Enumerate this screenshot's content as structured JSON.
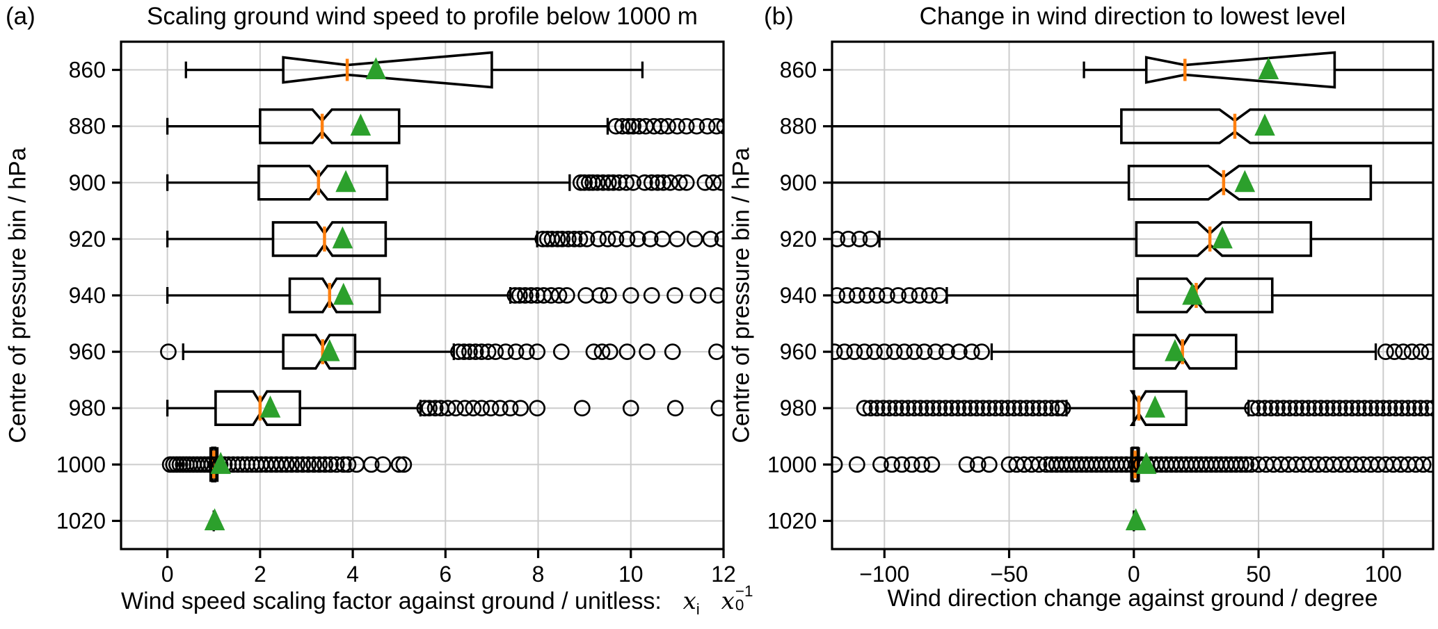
{
  "figure": {
    "background": "#ffffff"
  },
  "colors": {
    "box_line": "#000000",
    "median": "#ff7f0e",
    "mean_marker": "#2ca02c",
    "grid": "#cccccc",
    "text": "#000000"
  },
  "chart_data": [
    {
      "type": "box",
      "orientation": "horizontal",
      "tag": "(a)",
      "title": "Scaling ground wind speed to profile below 1000 m",
      "ylabel": "Centre of pressure bin / hPa",
      "xlabel": "Wind speed scaling factor against ground / unitless:",
      "xlabel_math": {
        "x1": "x",
        "s1": "i",
        "x2": "x",
        "s2": "0",
        "p2": "−1"
      },
      "xlim": [
        -1,
        12
      ],
      "grid": true,
      "legend": false,
      "xticks": {
        "values": [
          0,
          2,
          4,
          6,
          8,
          10,
          12
        ],
        "labels": [
          "0",
          "2",
          "4",
          "6",
          "8",
          "10",
          "12"
        ]
      },
      "categories": [
        "860",
        "880",
        "900",
        "920",
        "940",
        "960",
        "980",
        "1000",
        "1020"
      ],
      "rows": [
        {
          "label": "860",
          "kind": "flare",
          "whislo": 0.4,
          "q1": 2.5,
          "med": 3.88,
          "q3": 7.0,
          "whishi": 10.25,
          "mean": 4.5,
          "cap_lo": true,
          "cap_hi": true,
          "outliers": []
        },
        {
          "label": "880",
          "kind": "notched",
          "whislo": 0.0,
          "q1": 2.0,
          "med": 3.34,
          "q3": 5.0,
          "whishi": 9.5,
          "mean": 4.17,
          "cap_lo": true,
          "cap_hi": true,
          "outliers": [
            9.68,
            9.82,
            9.95,
            10.05,
            10.18,
            10.32,
            10.5,
            10.65,
            10.8,
            11.0,
            11.2,
            11.42,
            11.65,
            11.85,
            12.02
          ]
        },
        {
          "label": "900",
          "kind": "notched",
          "whislo": 0.0,
          "q1": 1.97,
          "med": 3.26,
          "q3": 4.74,
          "whishi": 8.68,
          "mean": 3.85,
          "cap_lo": true,
          "cap_hi": true,
          "outliers": [
            8.92,
            9.0,
            9.1,
            9.18,
            9.28,
            9.4,
            9.52,
            9.62,
            9.75,
            9.9,
            10.05,
            10.3,
            10.45,
            10.58,
            10.7,
            10.85,
            11.05,
            11.2,
            11.6,
            11.78,
            11.95
          ]
        },
        {
          "label": "920",
          "kind": "notched",
          "whislo": 0.0,
          "q1": 2.28,
          "med": 3.39,
          "q3": 4.71,
          "whishi": 7.98,
          "mean": 3.78,
          "cap_lo": true,
          "cap_hi": true,
          "outliers": [
            8.1,
            8.2,
            8.3,
            8.42,
            8.52,
            8.65,
            8.78,
            8.9,
            9.05,
            9.3,
            9.5,
            9.68,
            9.92,
            10.15,
            10.42,
            10.68,
            11.0,
            11.38,
            11.72,
            11.98
          ]
        },
        {
          "label": "940",
          "kind": "notched",
          "whislo": 0.0,
          "q1": 2.64,
          "med": 3.5,
          "q3": 4.58,
          "whishi": 7.4,
          "mean": 3.8,
          "cap_lo": true,
          "cap_hi": true,
          "outliers": [
            7.5,
            7.6,
            7.72,
            7.85,
            7.98,
            8.12,
            8.28,
            8.45,
            8.62,
            9.03,
            9.33,
            9.52,
            10.0,
            10.45,
            10.95,
            11.45,
            11.88
          ]
        },
        {
          "label": "960",
          "kind": "notched",
          "whislo": 0.34,
          "q1": 2.5,
          "med": 3.35,
          "q3": 4.05,
          "whishi": 6.18,
          "mean": 3.5,
          "cap_lo": true,
          "cap_hi": true,
          "outliers": [
            0.02,
            6.28,
            6.4,
            6.52,
            6.65,
            6.78,
            6.92,
            7.08,
            7.3,
            7.52,
            7.75,
            7.98,
            8.5,
            9.2,
            9.38,
            9.55,
            9.92,
            10.35,
            10.9,
            11.85
          ]
        },
        {
          "label": "980",
          "kind": "notched",
          "whislo": 0.0,
          "q1": 1.04,
          "med": 2.0,
          "q3": 2.86,
          "whishi": 5.46,
          "mean": 2.22,
          "cap_lo": true,
          "cap_hi": true,
          "outliers": [
            5.55,
            5.65,
            5.78,
            5.9,
            6.05,
            6.22,
            6.42,
            6.6,
            6.78,
            6.98,
            7.18,
            7.4,
            7.62,
            7.98,
            8.95,
            10.0,
            10.96,
            11.9
          ]
        },
        {
          "label": "1000",
          "kind": "collapsed",
          "whislo": 0.93,
          "q1": 0.97,
          "med": 1.0,
          "q3": 1.03,
          "whishi": 1.08,
          "mean": 1.15,
          "cap_lo": true,
          "cap_hi": true,
          "outliers": [
            0.06,
            0.13,
            0.2,
            0.27,
            0.34,
            0.41,
            0.48,
            0.56,
            0.64,
            0.72,
            0.8,
            0.88,
            0.96,
            1.05,
            1.14,
            1.23,
            1.32,
            1.42,
            1.52,
            1.62,
            1.72,
            1.82,
            1.92,
            2.02,
            2.13,
            2.24,
            2.35,
            2.46,
            2.57,
            2.68,
            2.8,
            2.92,
            3.04,
            3.16,
            3.28,
            3.4,
            3.52,
            3.65,
            3.8,
            3.9,
            4.08,
            4.4,
            4.65,
            5.0,
            5.1
          ]
        },
        {
          "label": "1020",
          "kind": "point",
          "med": 1.0,
          "mean": 1.02,
          "outliers": []
        }
      ]
    },
    {
      "type": "box",
      "orientation": "horizontal",
      "tag": "(b)",
      "title": "Change in wind direction to lowest level",
      "ylabel": "Centre of pressure bin / hPa",
      "xlabel": "Wind direction change against ground / degree",
      "xlim": [
        -121,
        120
      ],
      "grid": true,
      "legend": false,
      "xticks": {
        "values": [
          -100,
          -50,
          0,
          50,
          100
        ],
        "labels": [
          "−100",
          "−50",
          "0",
          "50",
          "100"
        ]
      },
      "categories": [
        "860",
        "880",
        "900",
        "920",
        "940",
        "960",
        "980",
        "1000",
        "1020"
      ],
      "rows": [
        {
          "label": "860",
          "kind": "flare",
          "whislo": -20,
          "q1": 5,
          "med": 20.5,
          "q3": 80.5,
          "whishi": 125,
          "mean": 54,
          "cap_lo": true,
          "cap_hi": false,
          "outliers": []
        },
        {
          "label": "880",
          "kind": "notched",
          "whislo": -125,
          "q1": -5,
          "med": 40.5,
          "q3": 125,
          "whishi": 125,
          "mean": 52.5,
          "cap_lo": false,
          "cap_hi": false,
          "outliers": []
        },
        {
          "label": "900",
          "kind": "notched",
          "whislo": -125,
          "q1": -2,
          "med": 36,
          "q3": 95,
          "whishi": 125,
          "mean": 44.5,
          "cap_lo": false,
          "cap_hi": false,
          "outliers": []
        },
        {
          "label": "920",
          "kind": "notched",
          "whislo": -102,
          "q1": 1,
          "med": 30.5,
          "q3": 71,
          "whishi": 125,
          "mean": 35.5,
          "cap_lo": true,
          "cap_hi": false,
          "outliers": [
            -119,
            -114.5,
            -110,
            -105.5
          ]
        },
        {
          "label": "940",
          "kind": "notched",
          "whislo": -75,
          "q1": 1.5,
          "med": 25,
          "q3": 55.5,
          "whishi": 125,
          "mean": 23.5,
          "cap_lo": true,
          "cap_hi": false,
          "outliers": [
            -119,
            -115,
            -111,
            -107,
            -103,
            -99,
            -94.5,
            -90,
            -86,
            -82,
            -78
          ]
        },
        {
          "label": "960",
          "kind": "notched",
          "whislo": -57,
          "q1": 0,
          "med": 19.5,
          "q3": 41,
          "whishi": 97,
          "mean": 16.5,
          "cap_lo": true,
          "cap_hi": true,
          "outliers": [
            -120,
            -116,
            -112,
            -108,
            -104,
            -100,
            -96,
            -92,
            -88,
            -84,
            -79.5,
            -75,
            -70,
            -65,
            -61,
            101,
            104.5,
            108,
            111.5,
            115,
            118.5
          ]
        },
        {
          "label": "980",
          "kind": "notched",
          "whislo": -27,
          "q1": 0,
          "med": 2,
          "q3": 21,
          "whishi": 46,
          "mean": 8.5,
          "cap_lo": true,
          "cap_hi": true,
          "outliers": [
            -108,
            -105.5,
            -103,
            -100.5,
            -98,
            -95.5,
            -93,
            -90.5,
            -88,
            -85.5,
            -83,
            -80.5,
            -78,
            -75.5,
            -73,
            -70.5,
            -68,
            -65.5,
            -63,
            -60.5,
            -58,
            -55.5,
            -53,
            -50.5,
            -48,
            -45.5,
            -43,
            -40.5,
            -38,
            -35.5,
            -33,
            -30.5,
            -28.5,
            47.5,
            50,
            52.5,
            55,
            57.5,
            60,
            62.5,
            65,
            67.5,
            70,
            72.5,
            75,
            77.5,
            80,
            82.5,
            85,
            87.5,
            90,
            92.5,
            95,
            97.5,
            100,
            102.5,
            105,
            107.5,
            110,
            112.5,
            115,
            117.5,
            120
          ]
        },
        {
          "label": "1000",
          "kind": "collapsed",
          "whislo": -1,
          "q1": -0.5,
          "med": 0.5,
          "q3": 1.5,
          "whishi": 2,
          "mean": 5,
          "cap_lo": true,
          "cap_hi": true,
          "outliers": [
            -120,
            -111,
            -101.5,
            -97,
            -93,
            -89,
            -85,
            -81,
            -67,
            -62.5,
            -58,
            -50,
            -47,
            -44,
            -41,
            -38,
            -35,
            -33,
            -31,
            -29,
            -27,
            -25,
            -23,
            -21,
            -19,
            -17,
            -15,
            -13,
            -11,
            -9,
            -7,
            -5,
            -3,
            -1,
            1,
            3,
            5,
            7,
            9,
            11,
            13,
            15,
            17,
            19,
            21,
            23,
            25,
            27,
            29,
            31,
            33,
            35,
            37,
            39,
            41,
            43,
            45,
            47,
            50,
            53,
            56,
            59,
            62,
            65,
            68,
            71,
            74,
            77,
            80,
            83,
            86,
            89,
            92,
            95,
            98,
            101,
            104,
            107,
            110,
            113,
            116,
            119
          ]
        },
        {
          "label": "1020",
          "kind": "point",
          "med": 0,
          "mean": 0.8,
          "outliers": []
        }
      ]
    }
  ]
}
